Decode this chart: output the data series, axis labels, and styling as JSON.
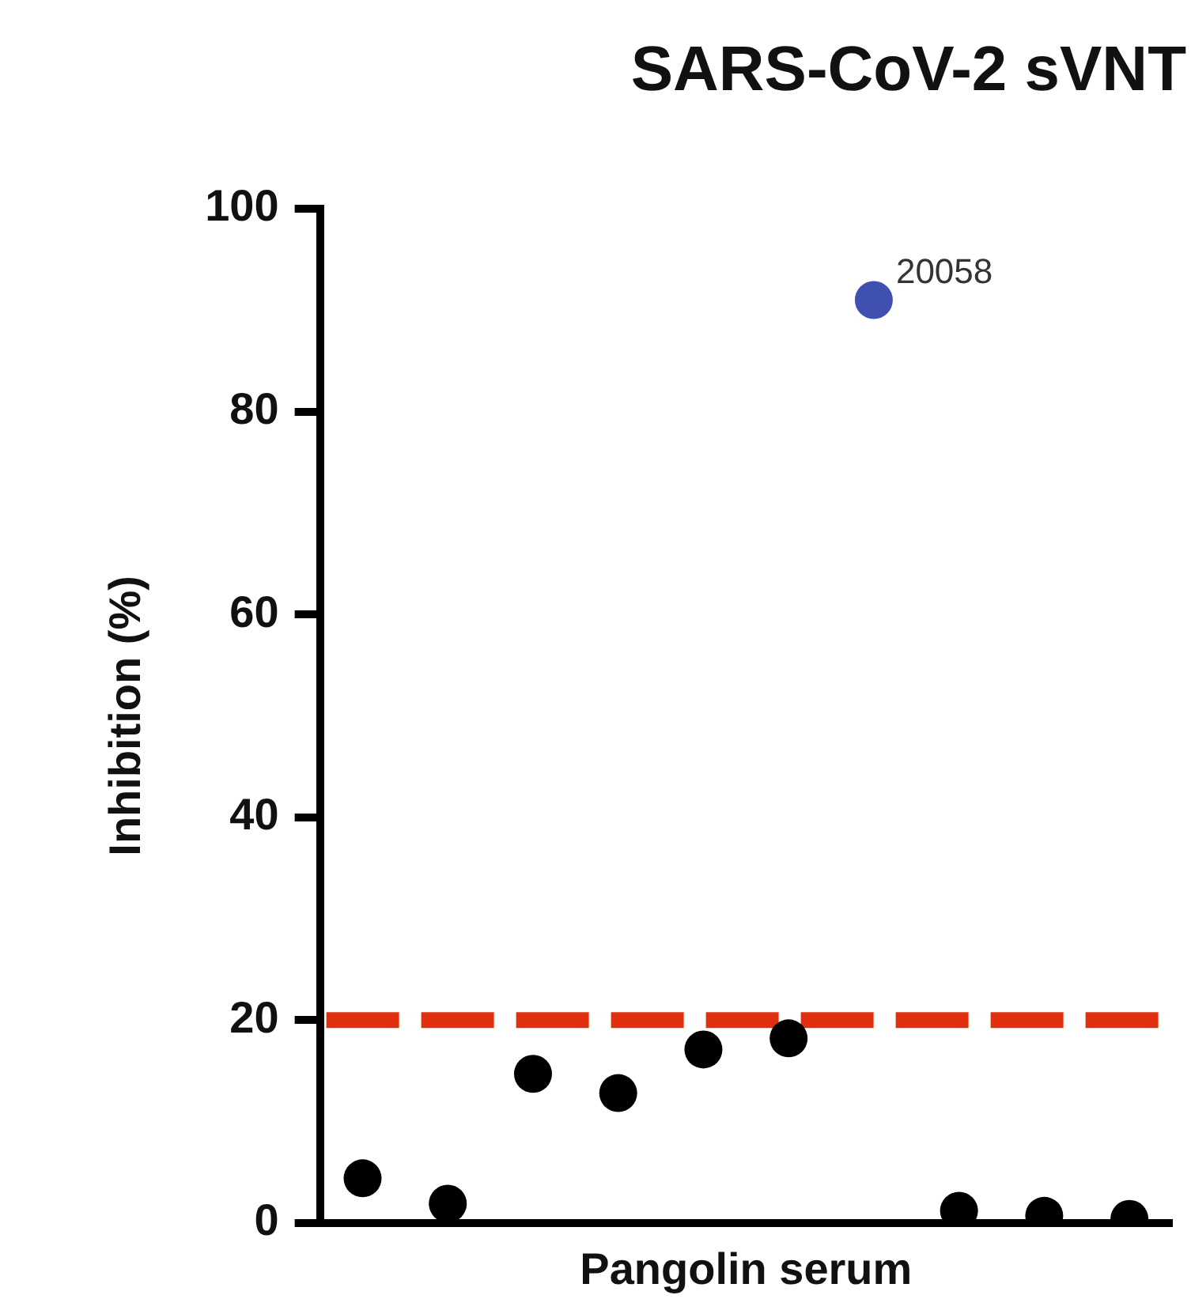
{
  "chart_data": {
    "type": "scatter",
    "title": "SARS-CoV-2 sVNT",
    "xlabel": "Pangolin serum",
    "ylabel": "Inhibition (%)",
    "categories": [
      null,
      null,
      null,
      null,
      null,
      null,
      null,
      null,
      null,
      null
    ],
    "series": [
      {
        "color": "#000000",
        "values": [
          4.4,
          1.9,
          14.7,
          12.8,
          17.1,
          18.2,
          null,
          1.2,
          0.7,
          0.4
        ]
      },
      {
        "color": "#4050b0",
        "values": [
          null,
          null,
          null,
          null,
          null,
          null,
          91,
          null,
          null,
          null
        ]
      }
    ],
    "annotations": [
      "20058"
    ],
    "ylim": [
      0,
      100
    ],
    "yticks": [
      0,
      20,
      40,
      60,
      80,
      100
    ],
    "ref_lines": [
      {
        "axis": "y",
        "value": 20,
        "color": "#e03010",
        "line_style": "dashed"
      }
    ],
    "marker": "circle",
    "grid": false,
    "legend": false
  }
}
